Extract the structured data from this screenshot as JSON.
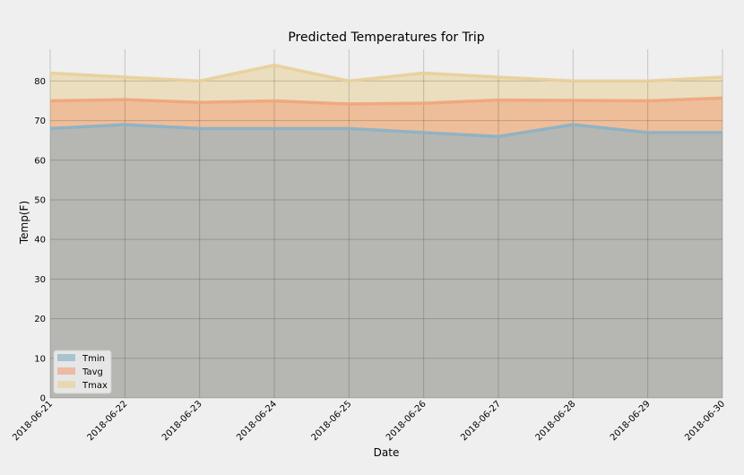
{
  "chart_data": {
    "type": "area",
    "title": "Predicted Temperatures for Trip",
    "xlabel": "Date",
    "ylabel": "Temp(F)",
    "ylim": [
      0,
      88
    ],
    "yticks": [
      0,
      10,
      20,
      30,
      40,
      50,
      60,
      70,
      80
    ],
    "grid": true,
    "legend_position": "lower-left",
    "stacked": false,
    "x": [
      "2018-06-21",
      "2018-06-22",
      "2018-06-23",
      "2018-06-24",
      "2018-06-25",
      "2018-06-26",
      "2018-06-27",
      "2018-06-28",
      "2018-06-29",
      "2018-06-30"
    ],
    "series": [
      {
        "name": "Tmin",
        "color": "#89b1c6",
        "values": [
          68,
          69,
          68,
          68,
          68,
          67,
          66,
          69,
          67,
          67
        ]
      },
      {
        "name": "Tavg",
        "color": "#f0a47c",
        "values": [
          75,
          75.3,
          74.6,
          75,
          74.2,
          74.4,
          75.2,
          75.1,
          75,
          75.7
        ]
      },
      {
        "name": "Tmax",
        "color": "#e8cf98",
        "values": [
          82,
          81,
          80,
          84,
          80,
          82,
          81,
          80,
          80,
          81
        ]
      }
    ]
  }
}
